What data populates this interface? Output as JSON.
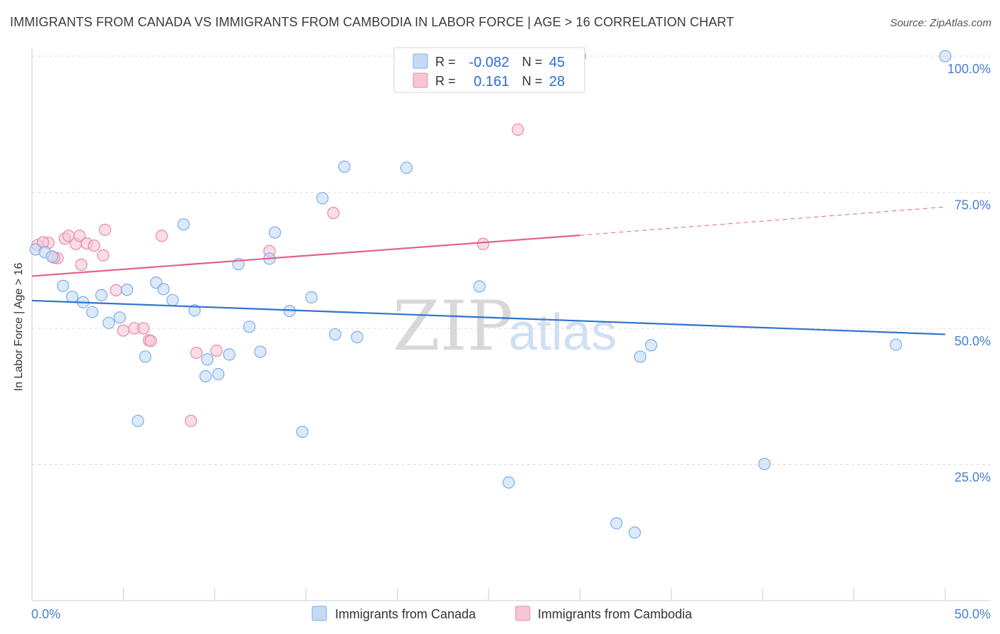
{
  "title": "IMMIGRANTS FROM CANADA VS IMMIGRANTS FROM CAMBODIA IN LABOR FORCE | AGE > 16 CORRELATION CHART",
  "source": "Source: ZipAtlas.com",
  "watermark": {
    "zip": "ZIP",
    "atlas": "atlas"
  },
  "colors": {
    "blue": "#7aaee8",
    "blue_fill": "#c5dbf5",
    "blue_line": "#2f73d0",
    "pink": "#e888aa",
    "pink_fill": "#f7c6d6",
    "pink_line": "#e3608c"
  },
  "chart_data": {
    "type": "scatter",
    "title": "IMMIGRANTS FROM CANADA VS IMMIGRANTS FROM CAMBODIA IN LABOR FORCE | AGE > 16 CORRELATION CHART",
    "xlabel": "",
    "ylabel": "In Labor Force | Age > 16",
    "xlim": [
      0,
      50
    ],
    "ylim": [
      0,
      100
    ],
    "x_tick_labels": [
      "0.0%",
      "50.0%"
    ],
    "y_ticks": [
      {
        "value": 25,
        "label": "25.0%"
      },
      {
        "value": 50,
        "label": "50.0%"
      },
      {
        "value": 75,
        "label": "75.0%"
      },
      {
        "value": 100,
        "label": "100.0%"
      }
    ],
    "legend": [
      {
        "r_label": "R =",
        "r_value": "-0.082",
        "n_label": "N =",
        "n_value": "45"
      },
      {
        "r_label": "R =",
        "r_value": "0.161",
        "n_label": "N =",
        "n_value": "28"
      }
    ],
    "series": [
      {
        "name": "Immigrants from Canada",
        "color": "#7aaee8",
        "trend": {
          "x0": 0,
          "y0": 55.1,
          "x1": 50,
          "y1": 48.9
        },
        "points": [
          [
            0.2,
            64.5
          ],
          [
            0.7,
            64.0
          ],
          [
            1.1,
            63.2
          ],
          [
            1.7,
            57.8
          ],
          [
            2.2,
            55.8
          ],
          [
            2.8,
            54.8
          ],
          [
            3.3,
            53.0
          ],
          [
            3.8,
            56.1
          ],
          [
            4.2,
            51.0
          ],
          [
            4.8,
            52.0
          ],
          [
            5.2,
            57.1
          ],
          [
            5.8,
            33.0
          ],
          [
            6.2,
            44.8
          ],
          [
            6.8,
            58.4
          ],
          [
            7.2,
            57.2
          ],
          [
            7.7,
            55.2
          ],
          [
            8.3,
            69.1
          ],
          [
            8.9,
            53.3
          ],
          [
            9.6,
            44.3
          ],
          [
            9.5,
            41.2
          ],
          [
            10.2,
            41.6
          ],
          [
            10.8,
            45.2
          ],
          [
            11.3,
            61.8
          ],
          [
            11.9,
            50.3
          ],
          [
            12.5,
            45.7
          ],
          [
            13.0,
            62.8
          ],
          [
            13.3,
            67.6
          ],
          [
            14.1,
            53.2
          ],
          [
            14.8,
            31.0
          ],
          [
            15.3,
            55.7
          ],
          [
            15.9,
            73.9
          ],
          [
            16.6,
            48.9
          ],
          [
            17.1,
            79.7
          ],
          [
            17.8,
            48.4
          ],
          [
            20.5,
            79.5
          ],
          [
            24.5,
            57.7
          ],
          [
            26.1,
            21.7
          ],
          [
            30.0,
            100.0
          ],
          [
            32.0,
            14.2
          ],
          [
            33.0,
            12.5
          ],
          [
            33.3,
            44.8
          ],
          [
            33.9,
            46.9
          ],
          [
            40.1,
            25.1
          ],
          [
            47.3,
            47.0
          ],
          [
            50.0,
            100.0
          ]
        ]
      },
      {
        "name": "Immigrants from Cambodia",
        "color": "#e888aa",
        "trend": {
          "x0": 0,
          "y0": 59.6,
          "x1": 30,
          "y1": 67.1,
          "dash_x1": 50,
          "dash_y1": 72.3
        },
        "points": [
          [
            0.3,
            65.3
          ],
          [
            0.9,
            65.7
          ],
          [
            1.4,
            62.9
          ],
          [
            1.8,
            66.5
          ],
          [
            2.0,
            67.0
          ],
          [
            2.4,
            65.5
          ],
          [
            2.6,
            67.0
          ],
          [
            2.7,
            61.7
          ],
          [
            3.0,
            65.6
          ],
          [
            3.4,
            65.2
          ],
          [
            3.9,
            63.4
          ],
          [
            4.0,
            68.1
          ],
          [
            4.6,
            57.0
          ],
          [
            5.0,
            49.6
          ],
          [
            5.6,
            50.0
          ],
          [
            6.1,
            50.0
          ],
          [
            6.4,
            47.8
          ],
          [
            7.1,
            67.0
          ],
          [
            8.7,
            33.0
          ],
          [
            9.0,
            45.5
          ],
          [
            10.1,
            45.9
          ],
          [
            13.0,
            64.2
          ],
          [
            16.5,
            71.2
          ],
          [
            24.7,
            65.5
          ],
          [
            26.6,
            86.5
          ],
          [
            6.5,
            47.7
          ],
          [
            1.2,
            63.0
          ],
          [
            0.6,
            65.8
          ]
        ]
      }
    ]
  },
  "legend_bottom": [
    "Immigrants from Canada",
    "Immigrants from Cambodia"
  ]
}
